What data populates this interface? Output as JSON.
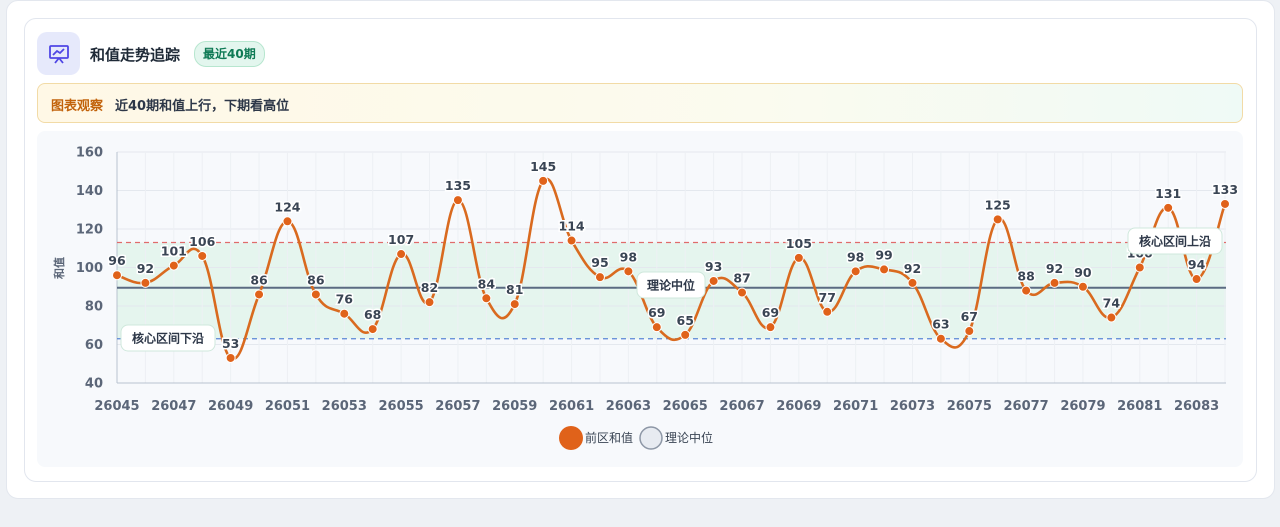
{
  "header": {
    "title": "和值走势追踪",
    "badge": "最近40期",
    "icon": "trend-chart-icon"
  },
  "observation": {
    "label": "图表观察",
    "text": "近40期和值上行，下期看高位"
  },
  "chart_data": {
    "type": "line",
    "x": [
      "26045",
      "26046",
      "26047",
      "26048",
      "26049",
      "26050",
      "26051",
      "26052",
      "26053",
      "26054",
      "26055",
      "26056",
      "26057",
      "26058",
      "26059",
      "26060",
      "26061",
      "26062",
      "26063",
      "26064",
      "26065",
      "26066",
      "26067",
      "26068",
      "26069",
      "26070",
      "26071",
      "26072",
      "26073",
      "26074",
      "26075",
      "26076",
      "26077",
      "26078",
      "26079",
      "26080",
      "26081",
      "26082",
      "26083",
      "26084"
    ],
    "x_tick_labels": [
      "26045",
      "26047",
      "26049",
      "26051",
      "26053",
      "26055",
      "26057",
      "26059",
      "26061",
      "26063",
      "26065",
      "26067",
      "26069",
      "26071",
      "26073",
      "26075",
      "26077",
      "26079",
      "26081",
      "26083"
    ],
    "series": [
      {
        "name": "前区和值",
        "color": "#e0621a",
        "line_color": "#d96a1f",
        "values": [
          96,
          92,
          101,
          106,
          53,
          86,
          124,
          86,
          76,
          68,
          107,
          82,
          135,
          84,
          81,
          145,
          114,
          95,
          98,
          69,
          65,
          93,
          87,
          69,
          105,
          77,
          98,
          99,
          92,
          63,
          67,
          125,
          88,
          92,
          90,
          74,
          100,
          131,
          94,
          133
        ],
        "data_labels": [
          "96",
          "92",
          "101",
          "106",
          "53",
          "86",
          "124",
          "86",
          "76",
          "68",
          "107",
          "82",
          "135",
          "84",
          "81",
          "145",
          "114",
          "95",
          "98",
          "69",
          "65",
          "93",
          "87",
          "69",
          "105",
          "77",
          "98",
          "99",
          "92",
          "63",
          "67",
          "125",
          "88",
          "92",
          "90",
          "74",
          "100",
          "131",
          "94",
          "133"
        ]
      },
      {
        "name": "理论中位",
        "color": "#5b6b82",
        "value": 89.5
      }
    ],
    "ylabel": "和值",
    "ylim": [
      40,
      160
    ],
    "y_ticks": [
      "40",
      "60",
      "80",
      "100",
      "120",
      "140",
      "160"
    ],
    "reference_lines": [
      {
        "label": "核心区间上沿",
        "value": 113,
        "color": "#e06b6b"
      },
      {
        "label": "核心区间下沿",
        "value": 63,
        "color": "#5a86d6"
      },
      {
        "label": "理论中位",
        "value": 89.5,
        "color": "#5b6b82"
      }
    ],
    "band_color": "#dff3ea",
    "grid": true,
    "legend": "bottom-center"
  }
}
